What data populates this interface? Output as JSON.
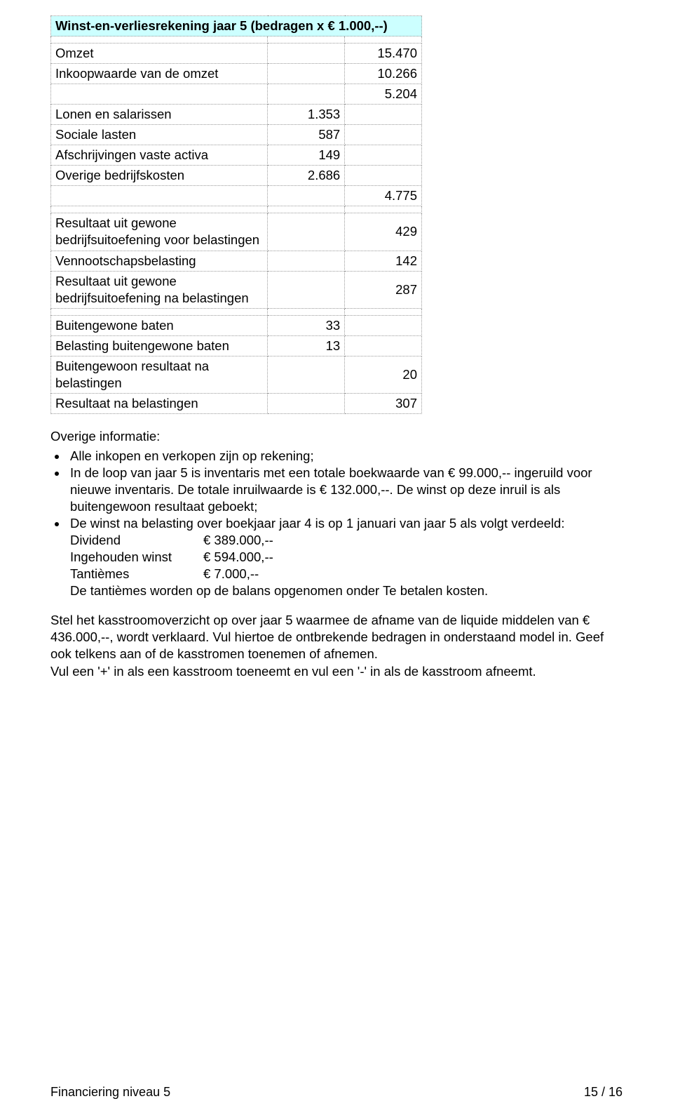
{
  "title": "Winst-en-verliesrekening jaar 5 (bedragen x € 1.000,--)",
  "table": {
    "rows": [
      {
        "label": "Omzet",
        "col1": "",
        "col2": "15.470"
      },
      {
        "label": "Inkoopwaarde van de omzet",
        "col1": "",
        "col2": "10.266"
      },
      {
        "label": "",
        "col1": "",
        "col2": "5.204"
      },
      {
        "label": "Lonen en salarissen",
        "col1": "1.353",
        "col2": ""
      },
      {
        "label": "Sociale lasten",
        "col1": "587",
        "col2": ""
      },
      {
        "label": "Afschrijvingen vaste activa",
        "col1": "149",
        "col2": ""
      },
      {
        "label": "Overige bedrijfskosten",
        "col1": "2.686",
        "col2": ""
      },
      {
        "label": "",
        "col1": "",
        "col2": "4.775"
      }
    ],
    "rows2": [
      {
        "label": "Resultaat uit gewone bedrijfsuitoefening voor belastingen",
        "col1": "",
        "col2": "429"
      },
      {
        "label": "Vennootschapsbelasting",
        "col1": "",
        "col2": "142"
      },
      {
        "label": "Resultaat uit gewone bedrijfsuitoefening na belastingen",
        "col1": "",
        "col2": "287"
      }
    ],
    "rows3": [
      {
        "label": "Buitengewone baten",
        "col1": "33",
        "col2": ""
      },
      {
        "label": "Belasting buitengewone baten",
        "col1": "13",
        "col2": ""
      },
      {
        "label": "Buitengewoon resultaat na belastingen",
        "col1": "",
        "col2": "20"
      },
      {
        "label": "Resultaat na belastingen",
        "col1": "",
        "col2": "307"
      }
    ]
  },
  "info_heading": "Overige informatie:",
  "bullets": {
    "b1": "Alle inkopen en verkopen zijn op rekening;",
    "b2": "In de loop van jaar 5 is inventaris met een totale boekwaarde van € 99.000,-- ingeruild voor nieuwe inventaris. De totale inruilwaarde is € 132.000,--. De winst op deze inruil is als buitengewoon resultaat geboekt;",
    "b3": "De winst na belasting over boekjaar jaar 4 is op 1 januari van jaar 5 als volgt verdeeld:"
  },
  "distribution": [
    {
      "label": "Dividend",
      "value": "€  389.000,--"
    },
    {
      "label": "Ingehouden winst",
      "value": "€  594.000,--"
    },
    {
      "label": "Tantièmes",
      "value": "€      7.000,--"
    }
  ],
  "tant_sentence": "De tantièmes worden op de balans opgenomen onder Te betalen kosten.",
  "para1": "Stel het kasstroomoverzicht op over jaar 5 waarmee de afname van de liquide middelen van € 436.000,--, wordt verklaard. Vul hiertoe de ontbrekende bedragen in onderstaand model in. Geef ook telkens aan of de kasstromen toenemen of afnemen.",
  "para2": "Vul een '+' in als een kasstroom toeneemt en vul een '-' in als de kasstroom afneemt.",
  "footer": {
    "left": "Financiering niveau 5",
    "right": "15 / 16"
  }
}
